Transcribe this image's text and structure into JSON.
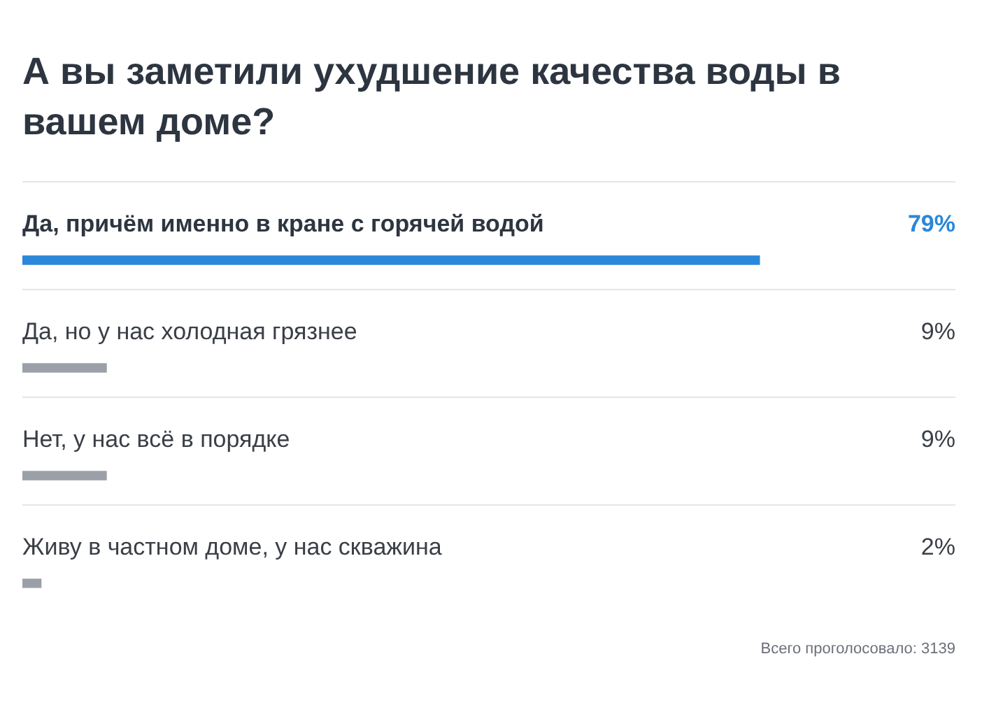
{
  "chart_data": {
    "type": "bar",
    "orientation": "horizontal",
    "title": "А вы заметили ухудшение качества воды в вашем доме?",
    "categories": [
      "Да, причём именно в кране с горячей водой",
      "Да, но у нас холодная грязнее",
      "Нет, у нас всё в порядке",
      "Живу в частном доме, у нас скважина"
    ],
    "values": [
      79,
      9,
      9,
      2
    ],
    "colors": [
      "#2b87d9",
      "#9ba0a8",
      "#9ba0a8",
      "#9ba0a8"
    ],
    "value_labels": [
      "79%",
      "9%",
      "9%",
      "2%"
    ],
    "xlim": [
      0,
      100
    ],
    "annotations": [
      "Всего проголосовало: 3139"
    ]
  }
}
